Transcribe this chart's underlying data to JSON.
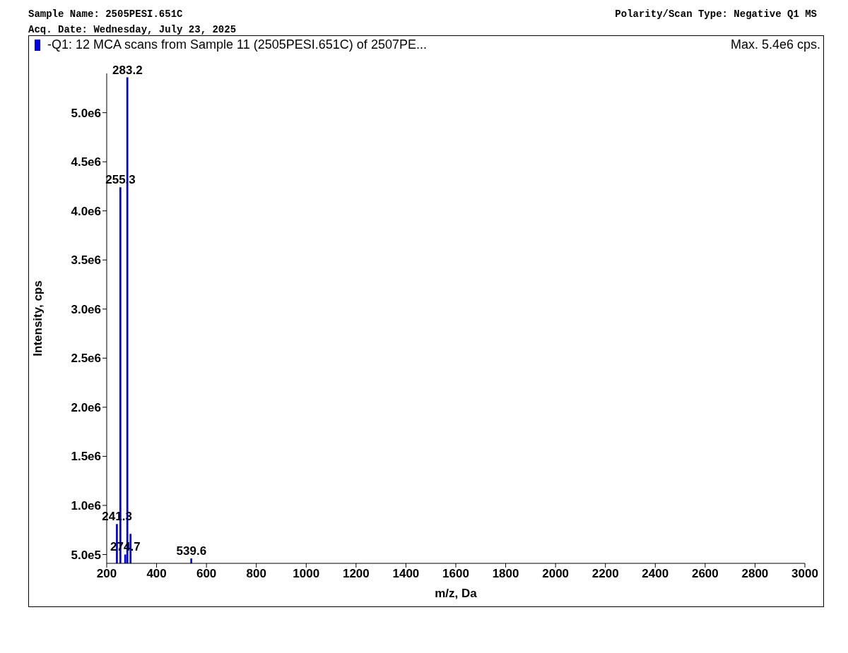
{
  "chart_data": {
    "type": "bar",
    "title": "Sample Name: 2505PESI.651C",
    "subtitle": "Acq. Date: Wednesday, July 23, 2025",
    "xlabel": "m/z, Da",
    "ylabel": "Intensity, cps",
    "annotations": [
      "Polarity/Scan Type: Negative Q1 MS",
      "Max. 5.4e6 cps.",
      {
        "text": "283.2",
        "x": 283.2,
        "y": 5360000
      },
      {
        "text": "255.3",
        "x": 255.3,
        "y": 4240000
      },
      {
        "text": "241.3",
        "x": 241.3,
        "y": 810000
      },
      {
        "text": "274.7",
        "x": 274.7,
        "y": 500000
      },
      {
        "text": "539.6",
        "x": 539.6,
        "y": 460000
      }
    ],
    "x": [
      241.3,
      255.3,
      274.7,
      283.2,
      296,
      539.6
    ],
    "series": [
      {
        "name": "-Q1: 12 MCA scans from Sample 11 (2505PESI.651C) of 2507PE...",
        "color": "#0000e6",
        "values": [
          810000,
          4240000,
          500000,
          5360000,
          710000,
          460000
        ]
      }
    ],
    "xlim": [
      200,
      3000
    ],
    "xticks": [
      200,
      400,
      600,
      800,
      1000,
      1200,
      1400,
      1600,
      1800,
      2000,
      2200,
      2400,
      2600,
      2800,
      3000
    ],
    "ylim": [
      410000,
      5400000
    ],
    "yticks": [
      {
        "value": 500000,
        "label": "5.0e5"
      },
      {
        "value": 1000000,
        "label": "1.0e6"
      },
      {
        "value": 1500000,
        "label": "1.5e6"
      },
      {
        "value": 2000000,
        "label": "2.0e6"
      },
      {
        "value": 2500000,
        "label": "2.5e6"
      },
      {
        "value": 3000000,
        "label": "3.0e6"
      },
      {
        "value": 3500000,
        "label": "3.5e6"
      },
      {
        "value": 4000000,
        "label": "4.0e6"
      },
      {
        "value": 4500000,
        "label": "4.5e6"
      },
      {
        "value": 5000000,
        "label": "5.0e6"
      }
    ],
    "grid": false,
    "legend": "top left"
  }
}
